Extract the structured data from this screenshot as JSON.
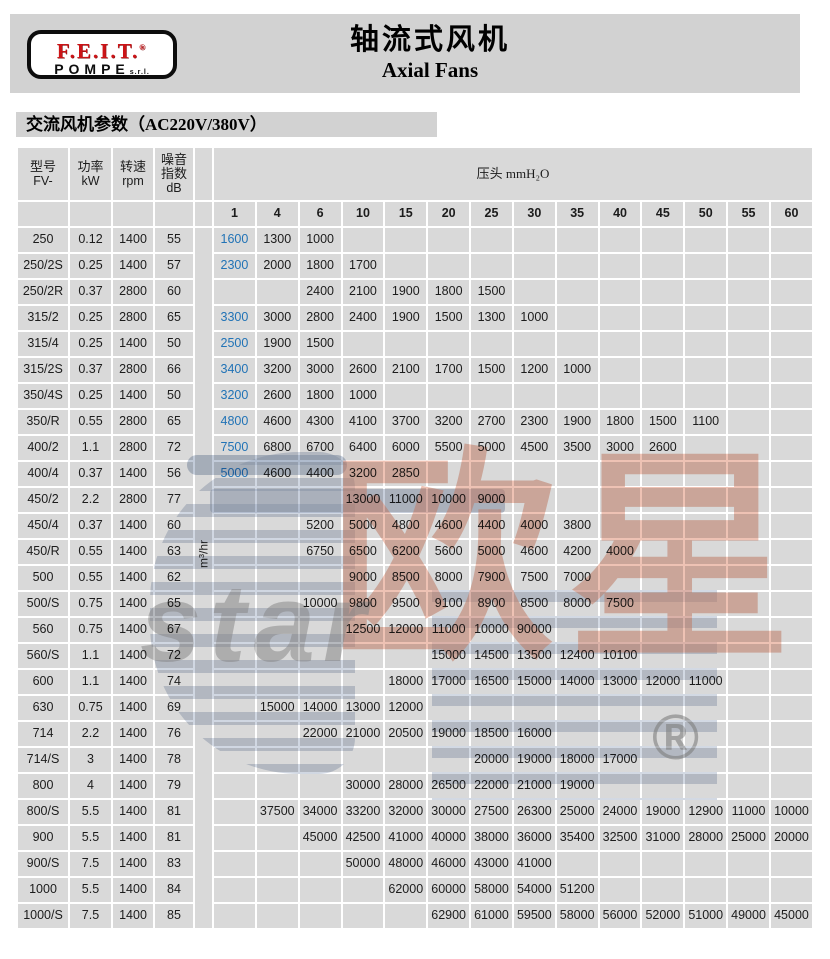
{
  "header": {
    "logo": {
      "brand": "F.E.I.T.",
      "reg_mark": "®",
      "sub_brand": "POMPE",
      "suffix": "s.r.l."
    },
    "title_zh": "轴流式风机",
    "title_en": "Axial Fans"
  },
  "section": {
    "title": "交流风机参数（AC220V/380V）"
  },
  "table": {
    "headers": {
      "model": [
        "型号",
        "FV-"
      ],
      "power": [
        "功率",
        "kW"
      ],
      "speed": [
        "转速",
        "rpm"
      ],
      "noise": [
        "噪音",
        "指数",
        "dB"
      ],
      "pressure": "压头 mmH₂O",
      "flow_unit": "m³/hr"
    },
    "pressure_cols": [
      "1",
      "4",
      "6",
      "10",
      "15",
      "20",
      "25",
      "30",
      "35",
      "40",
      "45",
      "50",
      "55",
      "60"
    ],
    "rows": [
      {
        "model": "250",
        "kw": "0.12",
        "rpm": "1400",
        "db": "55",
        "blue": [
          0
        ],
        "values": [
          "1600",
          "1300",
          "1000",
          null,
          null,
          null,
          null,
          null,
          null,
          null,
          null,
          null,
          null,
          null
        ]
      },
      {
        "model": "250/2S",
        "kw": "0.25",
        "rpm": "1400",
        "db": "57",
        "blue": [
          0
        ],
        "values": [
          "2300",
          "2000",
          "1800",
          "1700",
          null,
          null,
          null,
          null,
          null,
          null,
          null,
          null,
          null,
          null
        ]
      },
      {
        "model": "250/2R",
        "kw": "0.37",
        "rpm": "2800",
        "db": "60",
        "values": [
          null,
          null,
          "2400",
          "2100",
          "1900",
          "1800",
          "1500",
          null,
          null,
          null,
          null,
          null,
          null,
          null
        ]
      },
      {
        "model": "315/2",
        "kw": "0.25",
        "rpm": "2800",
        "db": "65",
        "blue": [
          0
        ],
        "values": [
          "3300",
          "3000",
          "2800",
          "2400",
          "1900",
          "1500",
          "1300",
          "1000",
          null,
          null,
          null,
          null,
          null,
          null
        ]
      },
      {
        "model": "315/4",
        "kw": "0.25",
        "rpm": "1400",
        "db": "50",
        "blue": [
          0
        ],
        "values": [
          "2500",
          "1900",
          "1500",
          null,
          null,
          null,
          null,
          null,
          null,
          null,
          null,
          null,
          null,
          null
        ]
      },
      {
        "model": "315/2S",
        "kw": "0.37",
        "rpm": "2800",
        "db": "66",
        "blue": [
          0
        ],
        "values": [
          "3400",
          "3200",
          "3000",
          "2600",
          "2100",
          "1700",
          "1500",
          "1200",
          "1000",
          null,
          null,
          null,
          null,
          null
        ]
      },
      {
        "model": "350/4S",
        "kw": "0.25",
        "rpm": "1400",
        "db": "50",
        "blue": [
          0
        ],
        "values": [
          "3200",
          "2600",
          "1800",
          "1000",
          null,
          null,
          null,
          null,
          null,
          null,
          null,
          null,
          null,
          null
        ]
      },
      {
        "model": "350/R",
        "kw": "0.55",
        "rpm": "2800",
        "db": "65",
        "blue": [
          0
        ],
        "values": [
          "4800",
          "4600",
          "4300",
          "4100",
          "3700",
          "3200",
          "2700",
          "2300",
          "1900",
          "1800",
          "1500",
          "1100",
          null,
          null
        ]
      },
      {
        "model": "400/2",
        "kw": "1.1",
        "rpm": "2800",
        "db": "72",
        "blue": [
          0
        ],
        "values": [
          "7500",
          "6800",
          "6700",
          "6400",
          "6000",
          "5500",
          "5000",
          "4500",
          "3500",
          "3000",
          "2600",
          null,
          null,
          null
        ]
      },
      {
        "model": "400/4",
        "kw": "0.37",
        "rpm": "1400",
        "db": "56",
        "blue": [
          0
        ],
        "values": [
          "5000",
          "4600",
          "4400",
          "3200",
          "2850",
          null,
          null,
          null,
          null,
          null,
          null,
          null,
          null,
          null
        ]
      },
      {
        "model": "450/2",
        "kw": "2.2",
        "rpm": "2800",
        "db": "77",
        "values": [
          null,
          null,
          null,
          "13000",
          "11000",
          "10000",
          "9000",
          null,
          null,
          null,
          null,
          null,
          null,
          null
        ]
      },
      {
        "model": "450/4",
        "kw": "0.37",
        "rpm": "1400",
        "db": "60",
        "values": [
          null,
          null,
          "5200",
          "5000",
          "4800",
          "4600",
          "4400",
          "4000",
          "3800",
          null,
          null,
          null,
          null,
          null
        ]
      },
      {
        "model": "450/R",
        "kw": "0.55",
        "rpm": "1400",
        "db": "63",
        "values": [
          null,
          null,
          "6750",
          "6500",
          "6200",
          "5600",
          "5000",
          "4600",
          "4200",
          "4000",
          null,
          null,
          null,
          null
        ]
      },
      {
        "model": "500",
        "kw": "0.55",
        "rpm": "1400",
        "db": "62",
        "values": [
          null,
          null,
          null,
          "9000",
          "8500",
          "8000",
          "7900",
          "7500",
          "7000",
          null,
          null,
          null,
          null,
          null
        ]
      },
      {
        "model": "500/S",
        "kw": "0.75",
        "rpm": "1400",
        "db": "65",
        "values": [
          null,
          null,
          "10000",
          "9800",
          "9500",
          "9100",
          "8900",
          "8500",
          "8000",
          "7500",
          null,
          null,
          null,
          null
        ]
      },
      {
        "model": "560",
        "kw": "0.75",
        "rpm": "1400",
        "db": "67",
        "values": [
          null,
          null,
          null,
          "12500",
          "12000",
          "11000",
          "10000",
          "90000",
          null,
          null,
          null,
          null,
          null,
          null
        ]
      },
      {
        "model": "560/S",
        "kw": "1.1",
        "rpm": "1400",
        "db": "72",
        "values": [
          null,
          null,
          null,
          null,
          null,
          "15000",
          "14500",
          "13500",
          "12400",
          "10100",
          null,
          null,
          null,
          null
        ]
      },
      {
        "model": "600",
        "kw": "1.1",
        "rpm": "1400",
        "db": "74",
        "values": [
          null,
          null,
          null,
          null,
          "18000",
          "17000",
          "16500",
          "15000",
          "14000",
          "13000",
          "12000",
          "11000",
          null,
          null
        ]
      },
      {
        "model": "630",
        "kw": "0.75",
        "rpm": "1400",
        "db": "69",
        "values": [
          null,
          "15000",
          "14000",
          "13000",
          "12000",
          null,
          null,
          null,
          null,
          null,
          null,
          null,
          null,
          null
        ]
      },
      {
        "model": "714",
        "kw": "2.2",
        "rpm": "1400",
        "db": "76",
        "values": [
          null,
          null,
          "22000",
          "21000",
          "20500",
          "19000",
          "18500",
          "16000",
          null,
          null,
          null,
          null,
          null,
          null
        ]
      },
      {
        "model": "714/S",
        "kw": "3",
        "rpm": "1400",
        "db": "78",
        "values": [
          null,
          null,
          null,
          null,
          null,
          null,
          "20000",
          "19000",
          "18000",
          "17000",
          null,
          null,
          null,
          null
        ]
      },
      {
        "model": "800",
        "kw": "4",
        "rpm": "1400",
        "db": "79",
        "values": [
          null,
          null,
          null,
          "30000",
          "28000",
          "26500",
          "22000",
          "21000",
          "19000",
          null,
          null,
          null,
          null,
          null
        ]
      },
      {
        "model": "800/S",
        "kw": "5.5",
        "rpm": "1400",
        "db": "81",
        "values": [
          null,
          "37500",
          "34000",
          "33200",
          "32000",
          "30000",
          "27500",
          "26300",
          "25000",
          "24000",
          "19000",
          "12900",
          "11000",
          "10000"
        ]
      },
      {
        "model": "900",
        "kw": "5.5",
        "rpm": "1400",
        "db": "81",
        "values": [
          null,
          null,
          "45000",
          "42500",
          "41000",
          "40000",
          "38000",
          "36000",
          "35400",
          "32500",
          "31000",
          "28000",
          "25000",
          "20000"
        ]
      },
      {
        "model": "900/S",
        "kw": "7.5",
        "rpm": "1400",
        "db": "83",
        "values": [
          null,
          null,
          null,
          "50000",
          "48000",
          "46000",
          "43000",
          "41000",
          null,
          null,
          null,
          null,
          null,
          null
        ]
      },
      {
        "model": "1000",
        "kw": "5.5",
        "rpm": "1400",
        "db": "84",
        "values": [
          null,
          null,
          null,
          null,
          "62000",
          "60000",
          "58000",
          "54000",
          "51200",
          null,
          null,
          null,
          null,
          null
        ]
      },
      {
        "model": "1000/S",
        "kw": "7.5",
        "rpm": "1400",
        "db": "85",
        "values": [
          null,
          null,
          null,
          null,
          null,
          "62900",
          "61000",
          "59500",
          "58000",
          "56000",
          "52000",
          "51000",
          "49000",
          "45000"
        ]
      }
    ]
  },
  "watermark": {
    "cn": "欧星",
    "en": "star",
    "reg": "®"
  },
  "colors": {
    "accent_blue": "#2173b6",
    "logo_red": "#cc1417",
    "banner_gray": "#d2d2d2",
    "cell_gray": "#d9d9d9"
  }
}
